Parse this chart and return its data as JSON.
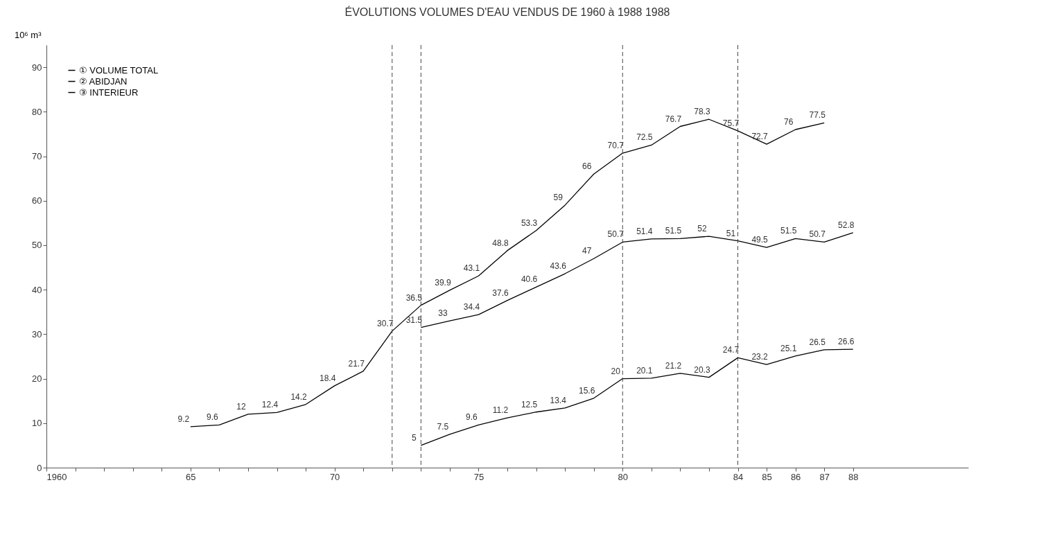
{
  "chart_data": {
    "type": "line",
    "title": "ÉVOLUTIONS VOLUMES D'EAU VENDUS DE 1960 à 1988 1988",
    "ylabel": "10⁶ m³",
    "series": [
      {
        "name": "① VOLUME TOTAL",
        "color": "#000000",
        "x": [
          1965,
          1966,
          1967,
          1968,
          1969,
          1970,
          1971,
          1972,
          1973,
          1974,
          1975,
          1976,
          1977,
          1978,
          1979,
          1980,
          1981,
          1982,
          1983,
          1984,
          1985,
          1986,
          1987
        ],
        "values": [
          9.2,
          9.6,
          12.0,
          12.4,
          14.2,
          18.4,
          21.7,
          30.7,
          36.5,
          39.9,
          43.1,
          48.8,
          53.3,
          59.0,
          66.0,
          70.7,
          72.5,
          76.7,
          78.3,
          75.7,
          72.7,
          76.0,
          77.5
        ]
      },
      {
        "name": "② ABIDJAN",
        "color": "#000000",
        "x": [
          1973,
          1974,
          1975,
          1976,
          1977,
          1978,
          1979,
          1980,
          1981,
          1982,
          1983,
          1984,
          1985,
          1986,
          1987,
          1988
        ],
        "values": [
          31.5,
          33.0,
          34.4,
          37.6,
          40.6,
          43.6,
          47.0,
          50.7,
          51.4,
          51.5,
          52.0,
          51.0,
          49.5,
          51.5,
          50.7,
          52.8
        ]
      },
      {
        "name": "③ INTERIEUR",
        "color": "#000000",
        "x": [
          1973,
          1974,
          1975,
          1976,
          1977,
          1978,
          1979,
          1980,
          1981,
          1982,
          1983,
          1984,
          1985,
          1986,
          1987,
          1988
        ],
        "values": [
          5.0,
          7.5,
          9.6,
          11.2,
          12.5,
          13.4,
          15.6,
          20.0,
          20.1,
          21.2,
          20.3,
          24.7,
          23.2,
          25.1,
          26.5,
          26.6
        ]
      }
    ],
    "data_labels": true,
    "xlim": [
      1960,
      1992
    ],
    "xticks": [
      {
        "value": 1960,
        "label": "1960"
      },
      {
        "value": 1961,
        "label": null
      },
      {
        "value": 1962,
        "label": null
      },
      {
        "value": 1963,
        "label": null
      },
      {
        "value": 1964,
        "label": null
      },
      {
        "value": 1965,
        "label": "65"
      },
      {
        "value": 1966,
        "label": null
      },
      {
        "value": 1967,
        "label": null
      },
      {
        "value": 1968,
        "label": null
      },
      {
        "value": 1969,
        "label": null
      },
      {
        "value": 1970,
        "label": "70"
      },
      {
        "value": 1971,
        "label": null
      },
      {
        "value": 1972,
        "label": null
      },
      {
        "value": 1973,
        "label": null
      },
      {
        "value": 1974,
        "label": null
      },
      {
        "value": 1975,
        "label": "75"
      },
      {
        "value": 1976,
        "label": null
      },
      {
        "value": 1977,
        "label": null
      },
      {
        "value": 1978,
        "label": null
      },
      {
        "value": 1979,
        "label": null
      },
      {
        "value": 1980,
        "label": "80"
      },
      {
        "value": 1981,
        "label": null
      },
      {
        "value": 1982,
        "label": null
      },
      {
        "value": 1983,
        "label": null
      },
      {
        "value": 1984,
        "label": "84"
      },
      {
        "value": 1985,
        "label": "85"
      },
      {
        "value": 1986,
        "label": "86"
      },
      {
        "value": 1987,
        "label": "87"
      },
      {
        "value": 1988,
        "label": "88"
      }
    ],
    "ylim": [
      0,
      95
    ],
    "yticks": [
      0,
      10,
      20,
      30,
      40,
      50,
      60,
      70,
      80,
      90
    ],
    "ref_lines": [
      {
        "axis": "x",
        "value": 1972,
        "line_style": "dashed"
      },
      {
        "axis": "x",
        "value": 1973,
        "line_style": "dashed"
      },
      {
        "axis": "x",
        "value": 1980,
        "line_style": "dashed"
      },
      {
        "axis": "x",
        "value": 1984,
        "line_style": "dashed"
      }
    ],
    "legend": "top left",
    "grid": false,
    "marker": "none",
    "line_style": "solid"
  }
}
